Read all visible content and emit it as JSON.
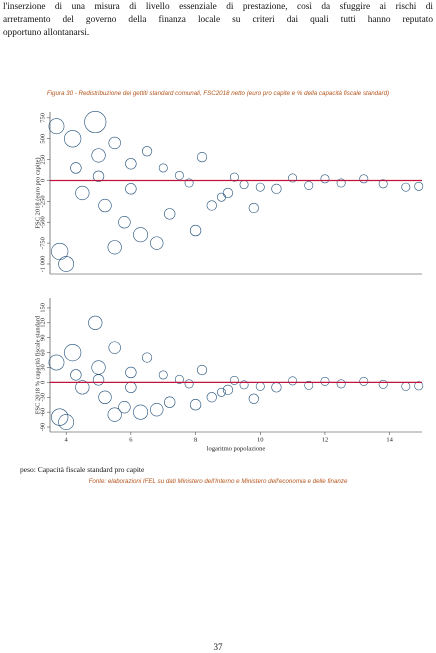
{
  "paragraph": [
    "l'inserzione di una misura di livello essenziale di prestazione, così da sfuggire ai rischi di",
    "arretramento del governo della finanza locale su criteri dai quali tutti hanno reputato",
    "opportuno allontanarsi."
  ],
  "caption": "Figura 30 - Redistribuzione dei gettiti standard comunali, FSC2018 netto (euro pro capite e % della capacità fiscale standard)",
  "chart_data": [
    {
      "type": "scatter",
      "ylabel": "FSC 2018 (euro pro capite)",
      "color": "#1f4e79",
      "hline": 0,
      "hline_color": "#c0143c",
      "xlim": [
        3.5,
        15
      ],
      "ylim": [
        -1120,
        820
      ],
      "yticks": [
        {
          "value": -1000,
          "label": "-1 000"
        },
        -750,
        -500,
        -250,
        0,
        250,
        500,
        750
      ],
      "x": [
        3.7,
        4.2,
        4.9,
        5.0,
        5.5,
        6.0,
        6.5,
        7.0,
        8.2,
        4.5,
        5.2,
        5.8,
        6.3,
        7.2,
        3.8,
        4.0,
        5.5,
        6.8,
        8.0,
        8.5,
        9.0,
        9.5,
        10.0,
        10.5,
        11.0,
        11.5,
        12.0,
        12.5,
        13.2,
        13.8,
        14.5,
        14.9,
        7.5,
        8.8,
        9.8,
        6.0,
        5.0,
        4.3,
        7.8,
        9.2
      ],
      "y": [
        650,
        500,
        700,
        300,
        450,
        200,
        350,
        150,
        280,
        -150,
        -300,
        -500,
        -650,
        -400,
        -850,
        -1000,
        -800,
        -750,
        -600,
        -300,
        -150,
        -50,
        -80,
        -100,
        30,
        -60,
        20,
        -30,
        20,
        -40,
        -80,
        -70,
        60,
        -200,
        -330,
        -100,
        50,
        150,
        -30,
        40
      ],
      "size": [
        10,
        12,
        20,
        8,
        6,
        5,
        4,
        3,
        4,
        8,
        7,
        6,
        9,
        5,
        12,
        10,
        8,
        7,
        5,
        4,
        4,
        3,
        3,
        4,
        3,
        3,
        3,
        3,
        3,
        3,
        3,
        3,
        3,
        3,
        4,
        5,
        5,
        5,
        3,
        3
      ]
    },
    {
      "type": "scatter",
      "ylabel": "FSC 2018 % capacità fiscale standard",
      "xlabel": "logaritmo popolazione",
      "color": "#1f4e79",
      "hline": 0,
      "hline_color": "#c0143c",
      "xlim": [
        3.5,
        15
      ],
      "ylim": [
        -100,
        170
      ],
      "xticks": [
        4,
        6,
        8,
        10,
        12,
        14
      ],
      "yticks": [
        -90,
        -60,
        -30,
        0,
        30,
        60,
        90,
        120,
        150
      ],
      "x": [
        3.7,
        4.2,
        4.9,
        5.0,
        5.5,
        6.0,
        6.5,
        7.0,
        8.2,
        4.5,
        5.2,
        5.8,
        6.3,
        7.2,
        3.8,
        4.0,
        5.5,
        6.8,
        8.0,
        8.5,
        9.0,
        9.5,
        10.0,
        10.5,
        11.0,
        11.5,
        12.0,
        12.5,
        13.2,
        13.8,
        14.5,
        14.9,
        7.5,
        8.8,
        9.8,
        6.0,
        5.0,
        4.3,
        7.8,
        9.2
      ],
      "y": [
        40,
        60,
        120,
        30,
        70,
        20,
        50,
        15,
        25,
        -10,
        -30,
        -50,
        -60,
        -40,
        -70,
        -80,
        -65,
        -55,
        -45,
        -30,
        -15,
        -5,
        -8,
        -10,
        3,
        -6,
        2,
        -3,
        2,
        -4,
        -8,
        -7,
        6,
        -20,
        -33,
        -10,
        5,
        15,
        -3,
        4
      ],
      "size": [
        10,
        12,
        8,
        8,
        6,
        5,
        4,
        3,
        4,
        8,
        7,
        6,
        9,
        5,
        12,
        10,
        8,
        7,
        5,
        4,
        4,
        3,
        3,
        4,
        3,
        3,
        3,
        3,
        3,
        3,
        3,
        3,
        3,
        3,
        4,
        5,
        5,
        5,
        3,
        3
      ]
    }
  ],
  "note": "peso: Capacità fiscale standard pro capite",
  "source": "Fonte: elaborazioni IFEL su dati Ministero dell'Interno e Ministero dell'economia e delle finanze",
  "page_number": "37"
}
